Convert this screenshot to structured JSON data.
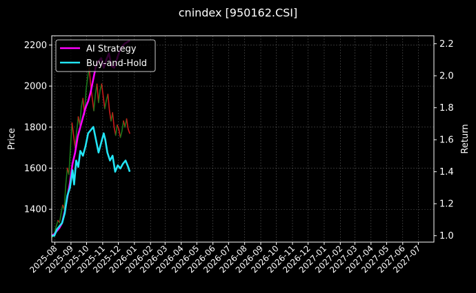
{
  "chart_data": {
    "type": "line",
    "title": "cnindex [950162.CSI]",
    "left_axis": {
      "label": "Price",
      "range": [
        1240,
        2245
      ],
      "ticks": [
        1400,
        1600,
        1800,
        2000,
        2200
      ],
      "tick_labels": [
        "1400",
        "1600",
        "1800",
        "2000",
        "2200"
      ]
    },
    "right_axis": {
      "label": "Return",
      "range": [
        0.96,
        2.25
      ],
      "ticks": [
        1.0,
        1.2,
        1.4,
        1.6,
        1.8,
        2.0,
        2.2
      ],
      "tick_labels": [
        "1.0",
        "1.2",
        "1.4",
        "1.6",
        "1.8",
        "2.0",
        "2.2"
      ]
    },
    "x_axis": {
      "type": "date",
      "range": [
        "2025-07-26",
        "2027-07-31"
      ],
      "ticks": [
        "2025-08-01",
        "2025-09-01",
        "2025-10-01",
        "2025-11-01",
        "2025-12-01",
        "2026-01-01",
        "2026-02-01",
        "2026-03-01",
        "2026-04-01",
        "2026-05-01",
        "2026-06-01",
        "2026-07-01",
        "2026-08-01",
        "2026-09-01",
        "2026-10-01",
        "2026-11-01",
        "2026-12-01",
        "2027-01-01",
        "2027-02-01",
        "2027-03-01",
        "2027-04-01",
        "2027-05-01",
        "2027-06-01",
        "2027-07-01"
      ],
      "tick_labels": [
        "2025-08",
        "2025-09",
        "2025-10",
        "2025-11",
        "2025-12",
        "2026-01",
        "2026-02",
        "2026-03",
        "2026-04",
        "2026-05",
        "2026-06",
        "2026-07",
        "2026-08",
        "2026-09",
        "2026-10",
        "2026-11",
        "2026-12",
        "2027-01",
        "2027-02",
        "2027-03",
        "2027-04",
        "2027-05",
        "2027-06",
        "2027-07"
      ]
    },
    "grid": true,
    "legend": {
      "position": "top-left",
      "entries": [
        {
          "label": "AI Strategy",
          "color": "#ff00ff"
        },
        {
          "label": "Buy-and-Hold",
          "color": "#22e5f5"
        }
      ]
    },
    "price_series": {
      "up_color": "#1a7a1a",
      "down_color": "#cc1a1a",
      "points": [
        [
          "2025-07-26",
          1262
        ],
        [
          "2025-07-29",
          1270
        ],
        [
          "2025-08-01",
          1290
        ],
        [
          "2025-08-04",
          1320
        ],
        [
          "2025-08-07",
          1345
        ],
        [
          "2025-08-10",
          1335
        ],
        [
          "2025-08-13",
          1380
        ],
        [
          "2025-08-16",
          1420
        ],
        [
          "2025-08-19",
          1400
        ],
        [
          "2025-08-22",
          1520
        ],
        [
          "2025-08-25",
          1600
        ],
        [
          "2025-08-28",
          1570
        ],
        [
          "2025-08-31",
          1700
        ],
        [
          "2025-09-03",
          1820
        ],
        [
          "2025-09-06",
          1760
        ],
        [
          "2025-09-09",
          1700
        ],
        [
          "2025-09-12",
          1780
        ],
        [
          "2025-09-15",
          1850
        ],
        [
          "2025-09-18",
          1810
        ],
        [
          "2025-09-21",
          1900
        ],
        [
          "2025-09-24",
          1940
        ],
        [
          "2025-09-27",
          1860
        ],
        [
          "2025-09-30",
          1980
        ],
        [
          "2025-10-03",
          2040
        ],
        [
          "2025-10-06",
          2090
        ],
        [
          "2025-10-09",
          2000
        ],
        [
          "2025-10-12",
          1940
        ],
        [
          "2025-10-15",
          1880
        ],
        [
          "2025-10-18",
          1960
        ],
        [
          "2025-10-21",
          2010
        ],
        [
          "2025-10-24",
          1920
        ],
        [
          "2025-10-27",
          1980
        ],
        [
          "2025-10-30",
          2010
        ],
        [
          "2025-11-02",
          1950
        ],
        [
          "2025-11-05",
          1890
        ],
        [
          "2025-11-08",
          1930
        ],
        [
          "2025-11-11",
          1960
        ],
        [
          "2025-11-14",
          1880
        ],
        [
          "2025-11-17",
          1830
        ],
        [
          "2025-11-20",
          1870
        ],
        [
          "2025-11-23",
          1800
        ],
        [
          "2025-11-26",
          1760
        ],
        [
          "2025-11-29",
          1810
        ],
        [
          "2025-12-02",
          1790
        ],
        [
          "2025-12-05",
          1750
        ],
        [
          "2025-12-08",
          1780
        ],
        [
          "2025-12-11",
          1830
        ],
        [
          "2025-12-14",
          1800
        ],
        [
          "2025-12-17",
          1840
        ],
        [
          "2025-12-20",
          1790
        ],
        [
          "2025-12-23",
          1770
        ]
      ]
    },
    "series": [
      {
        "name": "AI Strategy",
        "axis": "right",
        "color": "#ff00ff",
        "points": [
          [
            "2025-07-26",
            1.0
          ],
          [
            "2025-07-31",
            1.01
          ],
          [
            "2025-08-05",
            1.03
          ],
          [
            "2025-08-10",
            1.05
          ],
          [
            "2025-08-15",
            1.08
          ],
          [
            "2025-08-20",
            1.15
          ],
          [
            "2025-08-25",
            1.24
          ],
          [
            "2025-08-30",
            1.33
          ],
          [
            "2025-09-04",
            1.45
          ],
          [
            "2025-09-09",
            1.52
          ],
          [
            "2025-09-14",
            1.62
          ],
          [
            "2025-09-19",
            1.68
          ],
          [
            "2025-09-24",
            1.74
          ],
          [
            "2025-09-29",
            1.8
          ],
          [
            "2025-10-04",
            1.84
          ],
          [
            "2025-10-09",
            1.9
          ],
          [
            "2025-10-14",
            1.98
          ],
          [
            "2025-10-19",
            2.06
          ],
          [
            "2025-10-24",
            2.09
          ],
          [
            "2025-10-29",
            2.11
          ],
          [
            "2025-11-03",
            2.05
          ],
          [
            "2025-11-08",
            2.1
          ],
          [
            "2025-11-13",
            2.14
          ],
          [
            "2025-11-18",
            2.06
          ],
          [
            "2025-11-23",
            2.05
          ],
          [
            "2025-11-28",
            2.1
          ],
          [
            "2025-12-03",
            2.15
          ],
          [
            "2025-12-08",
            2.18
          ],
          [
            "2025-12-13",
            2.2
          ],
          [
            "2025-12-18",
            2.21
          ],
          [
            "2025-12-23",
            2.22
          ]
        ]
      },
      {
        "name": "Buy-and-Hold",
        "axis": "right",
        "color": "#22e5f5",
        "points": [
          [
            "2025-07-26",
            1.0
          ],
          [
            "2025-07-31",
            1.0
          ],
          [
            "2025-08-05",
            1.04
          ],
          [
            "2025-08-10",
            1.06
          ],
          [
            "2025-08-15",
            1.08
          ],
          [
            "2025-08-20",
            1.14
          ],
          [
            "2025-08-25",
            1.25
          ],
          [
            "2025-08-30",
            1.3
          ],
          [
            "2025-09-04",
            1.41
          ],
          [
            "2025-09-07",
            1.32
          ],
          [
            "2025-09-11",
            1.47
          ],
          [
            "2025-09-15",
            1.43
          ],
          [
            "2025-09-19",
            1.53
          ],
          [
            "2025-09-24",
            1.5
          ],
          [
            "2025-09-29",
            1.56
          ],
          [
            "2025-10-04",
            1.64
          ],
          [
            "2025-10-09",
            1.66
          ],
          [
            "2025-10-14",
            1.68
          ],
          [
            "2025-10-19",
            1.6
          ],
          [
            "2025-10-24",
            1.52
          ],
          [
            "2025-10-29",
            1.58
          ],
          [
            "2025-11-03",
            1.64
          ],
          [
            "2025-11-06",
            1.6
          ],
          [
            "2025-11-10",
            1.52
          ],
          [
            "2025-11-15",
            1.47
          ],
          [
            "2025-11-20",
            1.5
          ],
          [
            "2025-11-25",
            1.4
          ],
          [
            "2025-11-30",
            1.44
          ],
          [
            "2025-12-05",
            1.42
          ],
          [
            "2025-12-10",
            1.45
          ],
          [
            "2025-12-15",
            1.47
          ],
          [
            "2025-12-20",
            1.43
          ],
          [
            "2025-12-23",
            1.4
          ]
        ]
      }
    ]
  }
}
